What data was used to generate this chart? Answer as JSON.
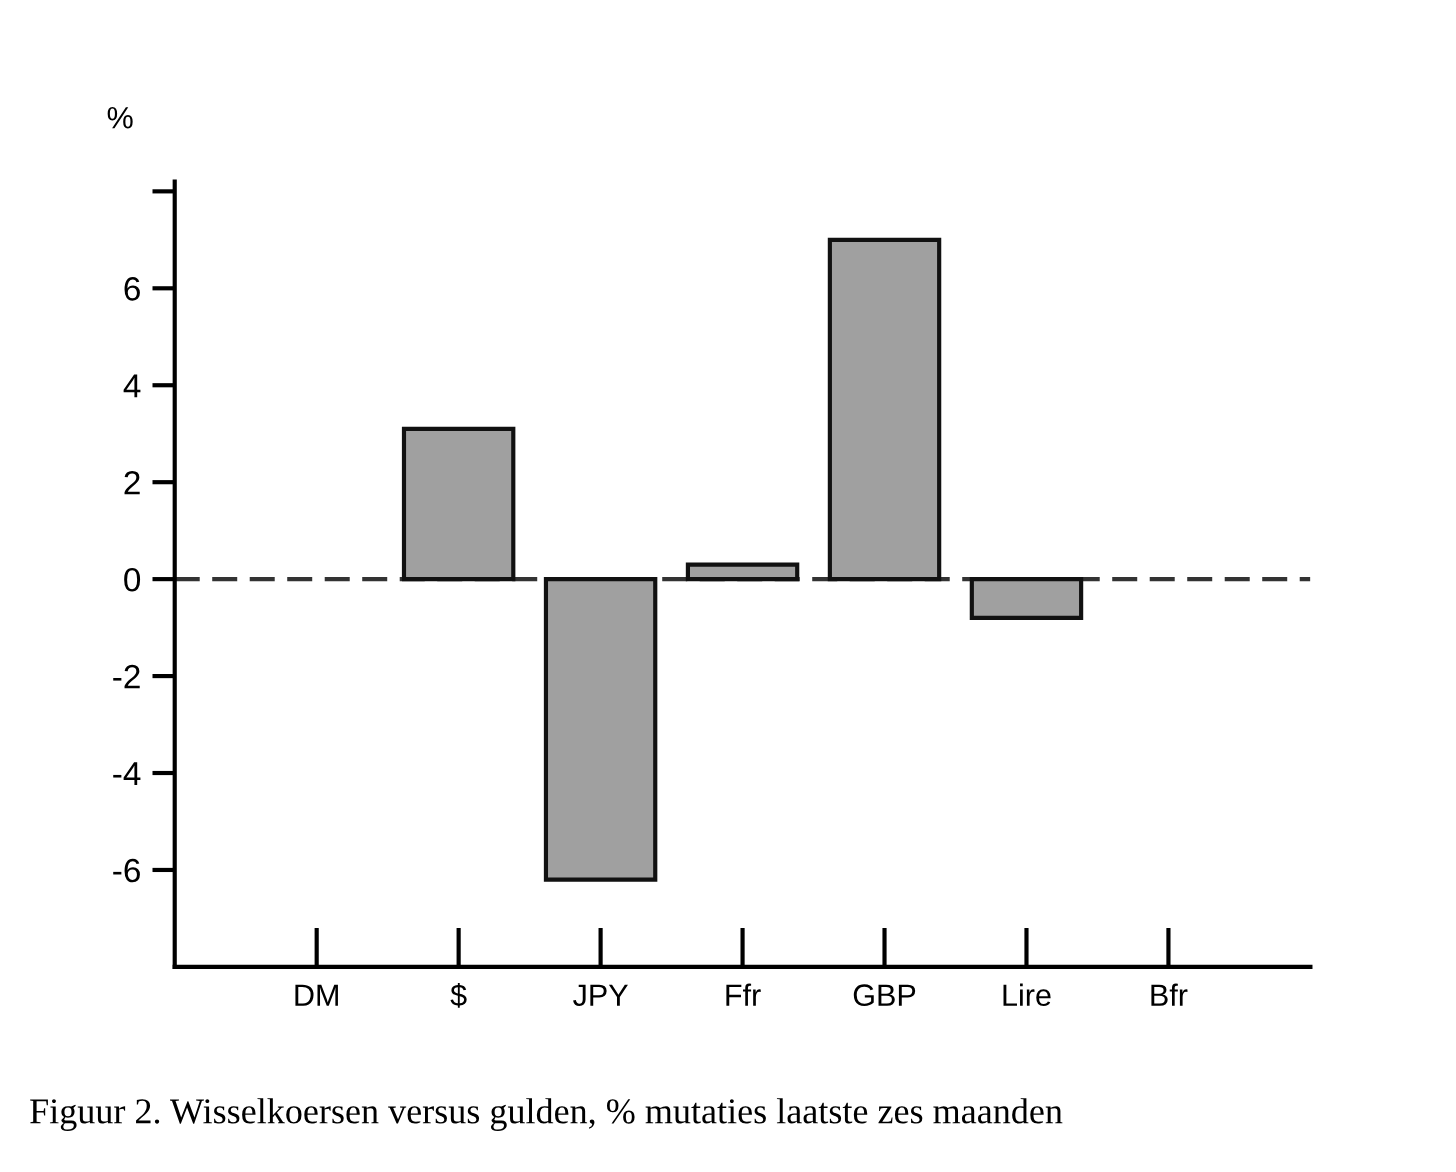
{
  "chart_data": {
    "type": "bar",
    "ylabel": "%",
    "categories": [
      "DM",
      "$",
      "JPY",
      "Ffr",
      "GBP",
      "Lire",
      "Bfr"
    ],
    "values": [
      0,
      3.1,
      -6.2,
      0.3,
      7.0,
      -0.8,
      0
    ],
    "color": "#a0a0a0",
    "ylim": [
      -8,
      8.2
    ],
    "yticks": [
      -6,
      -4,
      -2,
      0,
      2,
      4,
      6,
      {
        "value": 8,
        "label": null
      }
    ],
    "ref_lines": [
      {
        "axis": "y",
        "value": 0,
        "line_style": "dashed",
        "color": "#333333"
      }
    ],
    "grid": false,
    "legend": false,
    "annotations": [
      "Figuur 2. Wisselkoersen versus gulden, % mutaties laatste zes maanden"
    ]
  }
}
